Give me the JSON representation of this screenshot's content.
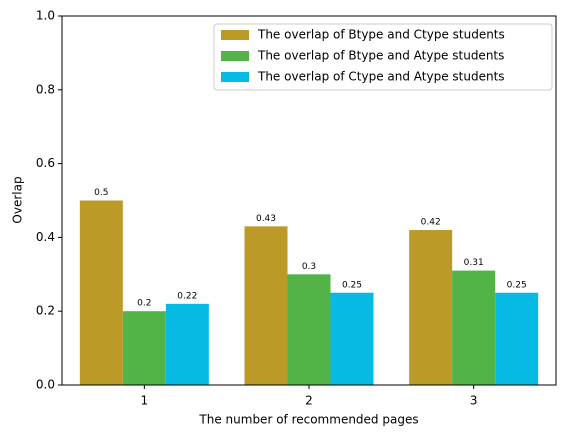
{
  "chart_data": {
    "type": "bar",
    "x_label": "The number of recommended pages",
    "y_label": "Overlap",
    "categories": [
      "1",
      "2",
      "3"
    ],
    "series": [
      {
        "name": "The overlap of Btype and Ctype students",
        "color": "#bc9a28",
        "values": [
          0.5,
          0.43,
          0.42
        ]
      },
      {
        "name": "The overlap of Btype and Atype students",
        "color": "#52b447",
        "values": [
          0.2,
          0.3,
          0.31
        ]
      },
      {
        "name": "The overlap of Ctype and Atype students",
        "color": "#06bbe3",
        "values": [
          0.22,
          0.25,
          0.25
        ]
      }
    ],
    "ylim": [
      0,
      1
    ],
    "yticks": [
      {
        "value": 0,
        "label": "0.0"
      },
      0.2,
      0.4,
      0.6,
      0.8,
      {
        "value": 1,
        "label": "1.0"
      }
    ],
    "legend": "upper right"
  }
}
